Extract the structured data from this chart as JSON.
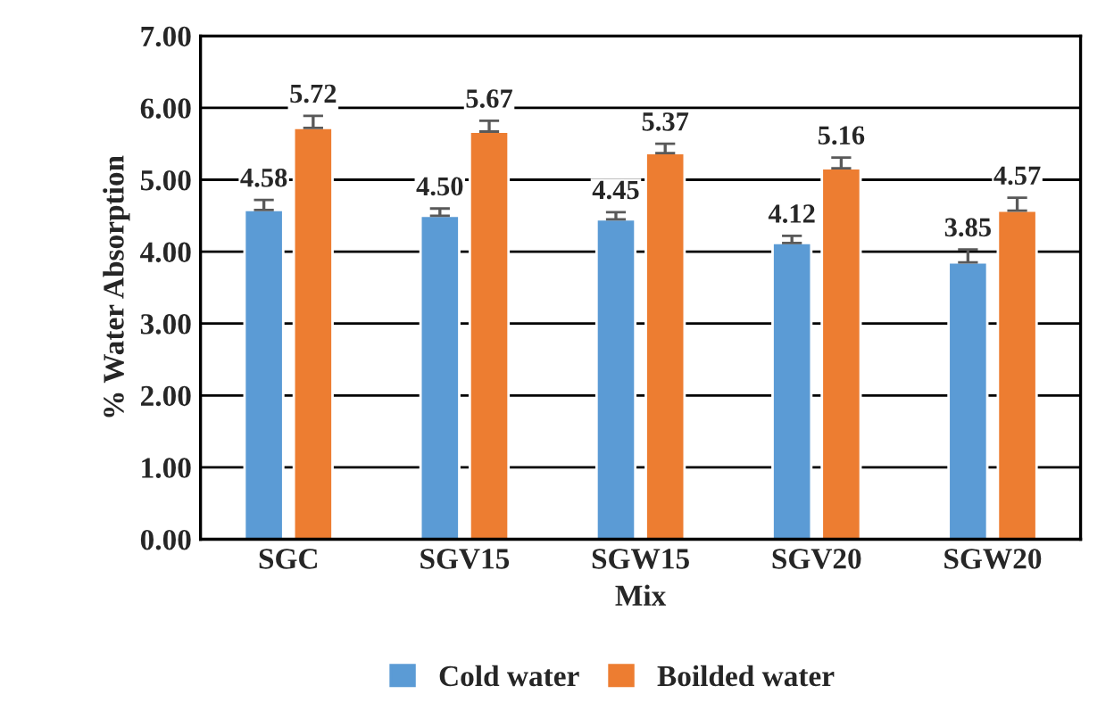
{
  "chart_data": {
    "type": "bar",
    "xlabel": "Mix",
    "ylabel": "% Water Absorption",
    "categories": [
      "SGC",
      "SGV15",
      "SGW15",
      "SGV20",
      "SGW20"
    ],
    "series": [
      {
        "name": "Cold water",
        "color": "#5b9bd5",
        "values": [
          4.58,
          4.5,
          4.45,
          4.12,
          3.85
        ],
        "errors": [
          [
            4.58,
            4.72
          ],
          [
            4.5,
            4.6
          ],
          [
            4.45,
            4.55
          ],
          [
            4.12,
            4.22
          ],
          [
            3.85,
            4.03
          ]
        ],
        "value_labels": [
          "4.58",
          "4.50",
          "4.45",
          "4.12",
          "3.85"
        ]
      },
      {
        "name": "Boilded water",
        "color": "#ed7d31",
        "values": [
          5.72,
          5.67,
          5.37,
          5.16,
          4.57
        ],
        "errors": [
          [
            5.72,
            5.89
          ],
          [
            5.67,
            5.82
          ],
          [
            5.37,
            5.5
          ],
          [
            5.16,
            5.31
          ],
          [
            4.57,
            4.75
          ]
        ],
        "value_labels": [
          "5.72",
          "5.67",
          "5.37",
          "5.16",
          "4.57"
        ]
      }
    ],
    "ylim": [
      0,
      7
    ],
    "yticks": [
      {
        "value": 0,
        "label": "0.00"
      },
      {
        "value": 1,
        "label": "1.00"
      },
      {
        "value": 2,
        "label": "2.00"
      },
      {
        "value": 3,
        "label": "3.00"
      },
      {
        "value": 4,
        "label": "4.00"
      },
      {
        "value": 5,
        "label": "5.00"
      },
      {
        "value": 6,
        "label": "6.00"
      },
      {
        "value": 7,
        "label": "7.00"
      }
    ],
    "grid": "y",
    "legend": "bottom"
  }
}
